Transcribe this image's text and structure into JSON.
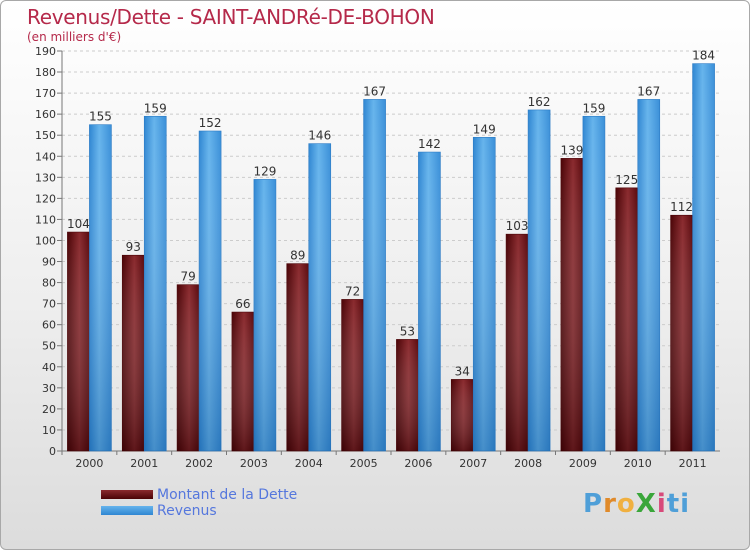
{
  "title": "Revenus/Dette - SAINT-ANDRé-DE-BOHON",
  "subtitle": "(en milliers d'€)",
  "logo": {
    "text": "ProXiti",
    "letters": [
      "P",
      "r",
      "o",
      "X",
      "i",
      "ti"
    ]
  },
  "colors": {
    "dette": "#6b0f14",
    "revenus": "#3a92dc",
    "title": "#b5294a",
    "legend_text": "#5577dd"
  },
  "chart_data": {
    "type": "bar",
    "categories": [
      "2000",
      "2001",
      "2002",
      "2003",
      "2004",
      "2005",
      "2006",
      "2007",
      "2008",
      "2009",
      "2010",
      "2011"
    ],
    "series": [
      {
        "name": "Montant de la Dette",
        "values": [
          104,
          93,
          79,
          66,
          89,
          72,
          53,
          34,
          103,
          139,
          125,
          112
        ]
      },
      {
        "name": "Revenus",
        "values": [
          155,
          159,
          152,
          129,
          146,
          167,
          142,
          149,
          162,
          159,
          167,
          184
        ]
      }
    ],
    "yticks": [
      0,
      10,
      20,
      30,
      40,
      50,
      60,
      70,
      80,
      90,
      100,
      110,
      120,
      130,
      140,
      150,
      160,
      170,
      180,
      190
    ],
    "ylim": [
      0,
      190
    ],
    "grid": true,
    "legend_position": "bottom-left"
  }
}
